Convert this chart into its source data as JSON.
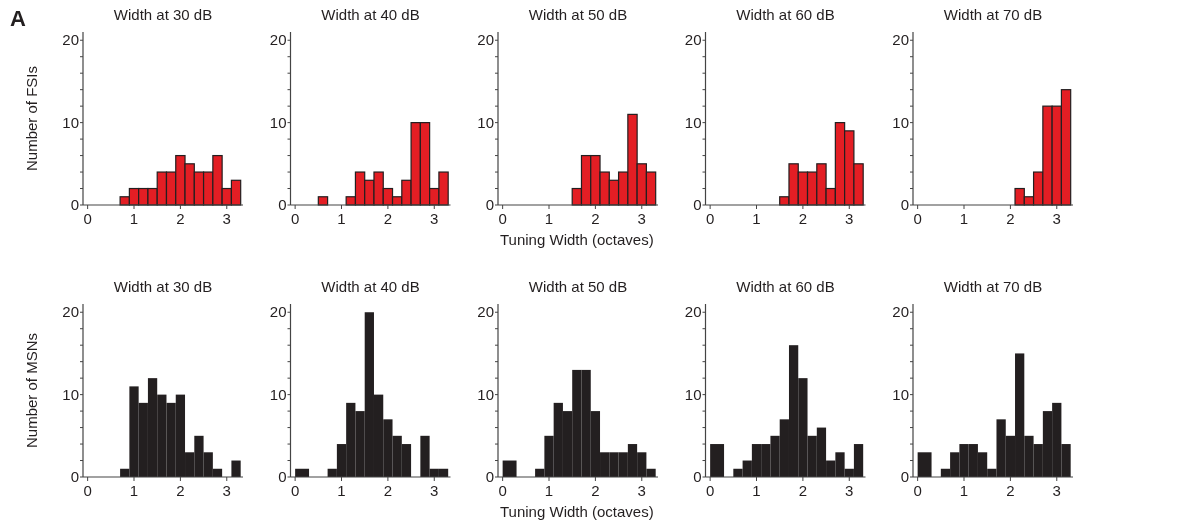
{
  "chart_data": [
    {
      "type": "histogram",
      "title": "Width at 30 dB",
      "ylabel": "Number of FSIs",
      "annotations": [
        "A"
      ],
      "color": "#e31e24",
      "bins": [
        0.7,
        0.9,
        1.1,
        1.3,
        1.5,
        1.7,
        1.9,
        2.1,
        2.3,
        2.5,
        2.7,
        2.9,
        3.1,
        3.3
      ],
      "values": [
        1,
        2,
        2,
        2,
        4,
        4,
        6,
        5,
        4,
        4,
        6,
        2,
        3
      ],
      "xlim": [
        -0.1,
        3.35
      ],
      "ylim": [
        0,
        21
      ],
      "xticks": [
        0,
        1,
        2,
        3
      ],
      "yticks": [
        0,
        {
          "value": 2,
          "label": null
        },
        {
          "value": 4,
          "label": null
        },
        {
          "value": 6,
          "label": null
        },
        {
          "value": 8,
          "label": null
        },
        10,
        {
          "value": 12,
          "label": null
        },
        {
          "value": 14,
          "label": null
        },
        {
          "value": 16,
          "label": null
        },
        {
          "value": 18,
          "label": null
        },
        20
      ]
    },
    {
      "type": "histogram",
      "title": "Width at 40 dB",
      "color": "#e31e24",
      "bins": [
        0.5,
        0.7,
        1.1,
        1.3,
        1.5,
        1.7,
        1.9,
        2.1,
        2.3,
        2.5,
        2.7,
        2.9,
        3.1,
        3.3
      ],
      "values": [
        1,
        0,
        1,
        4,
        3,
        4,
        2,
        1,
        3,
        10,
        10,
        2,
        4
      ],
      "xlim": [
        -0.1,
        3.35
      ],
      "ylim": [
        0,
        21
      ],
      "xticks": [
        0,
        1,
        2,
        3
      ],
      "yticks": [
        0,
        {
          "value": 2,
          "label": null
        },
        {
          "value": 4,
          "label": null
        },
        {
          "value": 6,
          "label": null
        },
        {
          "value": 8,
          "label": null
        },
        10,
        {
          "value": 12,
          "label": null
        },
        {
          "value": 14,
          "label": null
        },
        {
          "value": 16,
          "label": null
        },
        {
          "value": 18,
          "label": null
        },
        20
      ]
    },
    {
      "type": "histogram",
      "title": "Width at 50 dB",
      "xlabel": "Tuning Width (octaves)",
      "color": "#e31e24",
      "bins": [
        1.5,
        1.7,
        1.9,
        2.1,
        2.3,
        2.5,
        2.7,
        2.9,
        3.1,
        3.3
      ],
      "values": [
        2,
        6,
        6,
        4,
        3,
        4,
        11,
        5,
        4
      ],
      "xlim": [
        -0.1,
        3.35
      ],
      "ylim": [
        0,
        21
      ],
      "xticks": [
        0,
        1,
        2,
        3
      ],
      "yticks": [
        0,
        {
          "value": 2,
          "label": null
        },
        {
          "value": 4,
          "label": null
        },
        {
          "value": 6,
          "label": null
        },
        {
          "value": 8,
          "label": null
        },
        10,
        {
          "value": 12,
          "label": null
        },
        {
          "value": 14,
          "label": null
        },
        {
          "value": 16,
          "label": null
        },
        {
          "value": 18,
          "label": null
        },
        20
      ]
    },
    {
      "type": "histogram",
      "title": "Width at 60 dB",
      "color": "#e31e24",
      "bins": [
        1.5,
        1.7,
        1.9,
        2.1,
        2.3,
        2.5,
        2.7,
        2.9,
        3.1,
        3.3
      ],
      "values": [
        1,
        5,
        4,
        4,
        5,
        2,
        10,
        9,
        5
      ],
      "xlim": [
        -0.1,
        3.35
      ],
      "ylim": [
        0,
        21
      ],
      "xticks": [
        0,
        1,
        2,
        3
      ],
      "yticks": [
        0,
        {
          "value": 2,
          "label": null
        },
        {
          "value": 4,
          "label": null
        },
        {
          "value": 6,
          "label": null
        },
        {
          "value": 8,
          "label": null
        },
        10,
        {
          "value": 12,
          "label": null
        },
        {
          "value": 14,
          "label": null
        },
        {
          "value": 16,
          "label": null
        },
        {
          "value": 18,
          "label": null
        },
        20
      ]
    },
    {
      "type": "histogram",
      "title": "Width at 70 dB",
      "color": "#e31e24",
      "bins": [
        2.1,
        2.3,
        2.5,
        2.7,
        2.9,
        3.1,
        3.3
      ],
      "values": [
        2,
        1,
        4,
        12,
        12,
        14
      ],
      "xlim": [
        -0.1,
        3.35
      ],
      "ylim": [
        0,
        21
      ],
      "xticks": [
        0,
        1,
        2,
        3
      ],
      "yticks": [
        0,
        {
          "value": 2,
          "label": null
        },
        {
          "value": 4,
          "label": null
        },
        {
          "value": 6,
          "label": null
        },
        {
          "value": 8,
          "label": null
        },
        10,
        {
          "value": 12,
          "label": null
        },
        {
          "value": 14,
          "label": null
        },
        {
          "value": 16,
          "label": null
        },
        {
          "value": 18,
          "label": null
        },
        20
      ]
    },
    {
      "type": "histogram",
      "title": "Width at 30 dB",
      "ylabel": "Number of MSNs",
      "color": "#231f20",
      "bins": [
        0.7,
        0.9,
        1.1,
        1.3,
        1.5,
        1.7,
        1.9,
        2.1,
        2.3,
        2.5,
        2.7,
        2.9,
        3.1,
        3.3
      ],
      "values": [
        1,
        11,
        9,
        12,
        10,
        9,
        10,
        3,
        5,
        3,
        1,
        0,
        2
      ],
      "xlim": [
        -0.1,
        3.35
      ],
      "ylim": [
        0,
        21
      ],
      "xticks": [
        0,
        1,
        2,
        3
      ],
      "yticks": [
        0,
        {
          "value": 2,
          "label": null
        },
        {
          "value": 4,
          "label": null
        },
        {
          "value": 6,
          "label": null
        },
        {
          "value": 8,
          "label": null
        },
        10,
        {
          "value": 12,
          "label": null
        },
        {
          "value": 14,
          "label": null
        },
        {
          "value": 16,
          "label": null
        },
        {
          "value": 18,
          "label": null
        },
        20
      ]
    },
    {
      "type": "histogram",
      "title": "Width at 40 dB",
      "color": "#231f20",
      "bins": [
        0,
        0.3,
        0.7,
        0.9,
        1.1,
        1.3,
        1.5,
        1.7,
        1.9,
        2.1,
        2.3,
        2.5,
        2.7,
        2.9,
        3.1,
        3.3
      ],
      "values": [
        1,
        0,
        1,
        4,
        9,
        8,
        20,
        10,
        7,
        5,
        4,
        0,
        5,
        1,
        1
      ],
      "xlim": [
        -0.1,
        3.35
      ],
      "ylim": [
        0,
        21
      ],
      "xticks": [
        0,
        1,
        2,
        3
      ],
      "yticks": [
        0,
        {
          "value": 2,
          "label": null
        },
        {
          "value": 4,
          "label": null
        },
        {
          "value": 6,
          "label": null
        },
        {
          "value": 8,
          "label": null
        },
        10,
        {
          "value": 12,
          "label": null
        },
        {
          "value": 14,
          "label": null
        },
        {
          "value": 16,
          "label": null
        },
        {
          "value": 18,
          "label": null
        },
        20
      ]
    },
    {
      "type": "histogram",
      "title": "Width at 50 dB",
      "xlabel": "Tuning Width (octaves)",
      "color": "#231f20",
      "bins": [
        0,
        0.3,
        0.7,
        0.9,
        1.1,
        1.3,
        1.5,
        1.7,
        1.9,
        2.1,
        2.3,
        2.5,
        2.7,
        2.9,
        3.1,
        3.3
      ],
      "values": [
        2,
        0,
        1,
        5,
        9,
        8,
        13,
        13,
        8,
        3,
        3,
        3,
        4,
        3,
        1
      ],
      "xlim": [
        -0.1,
        3.35
      ],
      "ylim": [
        0,
        21
      ],
      "xticks": [
        0,
        1,
        2,
        3
      ],
      "yticks": [
        0,
        {
          "value": 2,
          "label": null
        },
        {
          "value": 4,
          "label": null
        },
        {
          "value": 6,
          "label": null
        },
        {
          "value": 8,
          "label": null
        },
        10,
        {
          "value": 12,
          "label": null
        },
        {
          "value": 14,
          "label": null
        },
        {
          "value": 16,
          "label": null
        },
        {
          "value": 18,
          "label": null
        },
        20
      ]
    },
    {
      "type": "histogram",
      "title": "Width at 60 dB",
      "color": "#231f20",
      "bins": [
        0,
        0.3,
        0.5,
        0.7,
        0.9,
        1.1,
        1.3,
        1.5,
        1.7,
        1.9,
        2.1,
        2.3,
        2.5,
        2.7,
        2.9,
        3.1,
        3.3
      ],
      "values": [
        4,
        0,
        1,
        2,
        4,
        4,
        5,
        7,
        16,
        12,
        5,
        6,
        2,
        3,
        1,
        4
      ],
      "xlim": [
        -0.1,
        3.35
      ],
      "ylim": [
        0,
        21
      ],
      "xticks": [
        0,
        1,
        2,
        3
      ],
      "yticks": [
        0,
        {
          "value": 2,
          "label": null
        },
        {
          "value": 4,
          "label": null
        },
        {
          "value": 6,
          "label": null
        },
        {
          "value": 8,
          "label": null
        },
        10,
        {
          "value": 12,
          "label": null
        },
        {
          "value": 14,
          "label": null
        },
        {
          "value": 16,
          "label": null
        },
        {
          "value": 18,
          "label": null
        },
        20
      ]
    },
    {
      "type": "histogram",
      "title": "Width at 70 dB",
      "color": "#231f20",
      "bins": [
        0,
        0.3,
        0.5,
        0.7,
        0.9,
        1.1,
        1.3,
        1.5,
        1.7,
        1.9,
        2.1,
        2.3,
        2.5,
        2.7,
        2.9,
        3.1,
        3.3
      ],
      "values": [
        3,
        0,
        1,
        3,
        4,
        4,
        3,
        1,
        7,
        5,
        15,
        5,
        4,
        8,
        9,
        4
      ],
      "xlim": [
        -0.1,
        3.35
      ],
      "ylim": [
        0,
        21
      ],
      "xticks": [
        0,
        1,
        2,
        3
      ],
      "yticks": [
        0,
        {
          "value": 2,
          "label": null
        },
        {
          "value": 4,
          "label": null
        },
        {
          "value": 6,
          "label": null
        },
        {
          "value": 8,
          "label": null
        },
        10,
        {
          "value": 12,
          "label": null
        },
        {
          "value": 14,
          "label": null
        },
        {
          "value": 16,
          "label": null
        },
        {
          "value": 18,
          "label": null
        },
        20
      ]
    }
  ]
}
